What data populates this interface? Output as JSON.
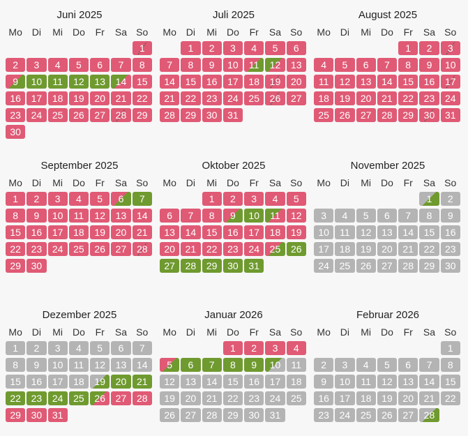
{
  "weekdays": [
    "Mo",
    "Di",
    "Mi",
    "Do",
    "Fr",
    "Sa",
    "So"
  ],
  "colors": {
    "booked": "#e05a75",
    "free": "#6f9a2f",
    "past": "#b4b4b4"
  },
  "months": [
    {
      "title": "Juni 2025",
      "offset": 6,
      "days": 30,
      "status": {
        "booked": [
          1,
          2,
          3,
          4,
          5,
          6,
          7,
          8,
          15,
          16,
          17,
          18,
          19,
          20,
          21,
          22,
          23,
          24,
          25,
          26,
          27,
          28,
          29,
          30
        ],
        "free": [
          10,
          11,
          12,
          13
        ],
        "in": [
          9
        ],
        "out": [
          14
        ],
        "change": [
          1,
          28
        ]
      }
    },
    {
      "title": "Juli 2025",
      "offset": 1,
      "days": 31,
      "status": {
        "booked": [
          1,
          2,
          3,
          4,
          5,
          6,
          7,
          8,
          9,
          10,
          13,
          14,
          15,
          16,
          17,
          18,
          19,
          20,
          21,
          22,
          23,
          24,
          25,
          26,
          27,
          28,
          29,
          30,
          31
        ],
        "free": [],
        "in": [
          11
        ],
        "out": [
          12
        ],
        "change": [
          19,
          26
        ]
      }
    },
    {
      "title": "August 2025",
      "offset": 4,
      "days": 31,
      "status": {
        "booked": [
          1,
          2,
          3,
          4,
          5,
          6,
          7,
          8,
          9,
          10,
          11,
          12,
          13,
          14,
          15,
          16,
          17,
          18,
          19,
          20,
          21,
          22,
          23,
          24,
          25,
          26,
          27,
          28,
          29,
          30,
          31
        ],
        "free": [],
        "in": [],
        "out": [],
        "change": [
          3,
          17,
          30
        ]
      }
    },
    {
      "title": "September 2025",
      "offset": 0,
      "days": 30,
      "status": {
        "booked": [
          1,
          2,
          3,
          4,
          5,
          8,
          9,
          10,
          11,
          12,
          13,
          14,
          15,
          16,
          17,
          18,
          19,
          20,
          21,
          22,
          23,
          24,
          25,
          26,
          27,
          28,
          29,
          30
        ],
        "free": [
          7
        ],
        "in": [
          6
        ],
        "out": [],
        "change": [
          28
        ]
      }
    },
    {
      "title": "Oktober 2025",
      "offset": 2,
      "days": 31,
      "status": {
        "booked": [
          1,
          2,
          3,
          4,
          5,
          6,
          7,
          8,
          12,
          13,
          14,
          15,
          16,
          17,
          18,
          19,
          20,
          21,
          22,
          23,
          24
        ],
        "free": [
          10,
          26,
          27,
          28,
          29,
          30,
          31
        ],
        "in": [
          9,
          25
        ],
        "out": [
          11
        ],
        "change": []
      }
    },
    {
      "title": "November 2025",
      "offset": 5,
      "days": 30,
      "status": {
        "booked": [],
        "free": [],
        "in": [],
        "out": [],
        "ps_in": [
          1
        ],
        "change": []
      }
    },
    {
      "title": "Dezember 2025",
      "offset": 0,
      "days": 31,
      "status": {
        "booked": [
          27,
          28,
          29,
          30,
          31
        ],
        "free": [
          20,
          21,
          22,
          23,
          24,
          25
        ],
        "in": [],
        "out": [
          26
        ],
        "ps_in": [
          19
        ],
        "change": []
      }
    },
    {
      "title": "Januar 2026",
      "offset": 3,
      "days": 31,
      "status": {
        "booked": [
          1,
          2,
          3,
          4
        ],
        "free": [
          6,
          7,
          8,
          9
        ],
        "in": [
          5
        ],
        "out": [],
        "ps_out": [
          10
        ],
        "change": []
      }
    },
    {
      "title": "Februar 2026",
      "offset": 6,
      "days": 28,
      "status": {
        "booked": [],
        "free": [],
        "in": [],
        "out": [],
        "ps_in": [
          28
        ],
        "change": []
      }
    }
  ]
}
